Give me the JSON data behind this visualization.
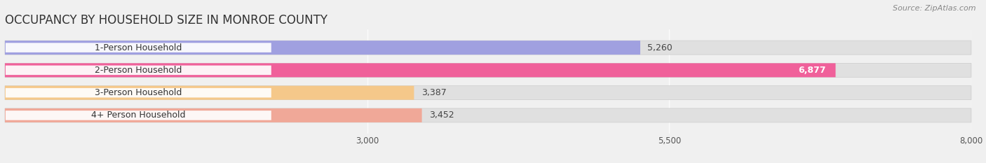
{
  "title": "OCCUPANCY BY HOUSEHOLD SIZE IN MONROE COUNTY",
  "source": "Source: ZipAtlas.com",
  "categories": [
    "1-Person Household",
    "2-Person Household",
    "3-Person Household",
    "4+ Person Household"
  ],
  "values": [
    5260,
    6877,
    3387,
    3452
  ],
  "bar_colors": [
    "#a0a0e0",
    "#f0609a",
    "#f5c88a",
    "#f0a898"
  ],
  "label_bg_colors": [
    "#ffffff",
    "#ffffff",
    "#ffffff",
    "#ffffff"
  ],
  "value_colors": [
    "#444444",
    "#ffffff",
    "#444444",
    "#444444"
  ],
  "xlim_data": [
    0,
    8000
  ],
  "xaxis_min": 0,
  "xaxis_max": 8000,
  "xticks": [
    3000,
    5500,
    8000
  ],
  "title_fontsize": 12,
  "label_fontsize": 9,
  "value_fontsize": 9,
  "source_fontsize": 8,
  "background_color": "#f0f0f0",
  "row_bg_color": "#e0e0e0",
  "bar_gap": 0.18
}
